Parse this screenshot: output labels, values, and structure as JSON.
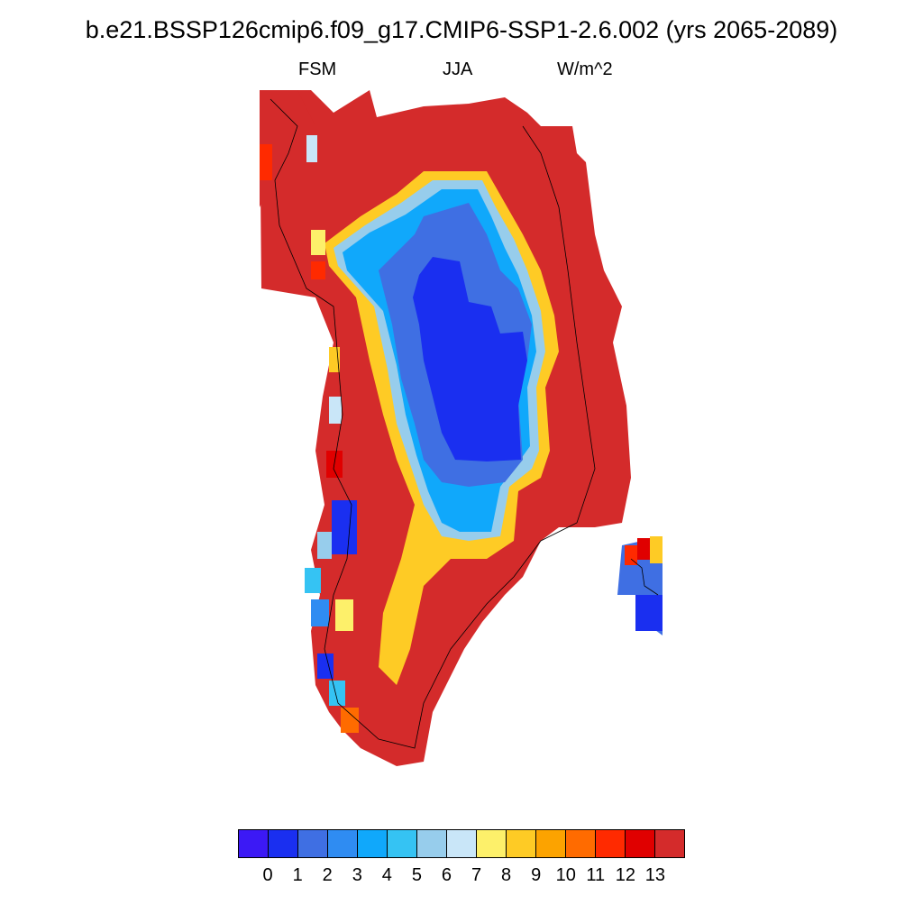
{
  "title": "b.e21.BSSP126cmip6.f09_g17.CMIP6-SSP1-2.6.002 (yrs 2065-2089)",
  "subtitle": {
    "left": "FSM",
    "center": "JJA",
    "right": "W/m^2"
  },
  "colorbar": {
    "colors": [
      "#3c19f5",
      "#1a2ff0",
      "#3f6fe3",
      "#2f8cf2",
      "#10a8fb",
      "#35c3f3",
      "#97cdec",
      "#c9e6f8",
      "#fdf06a",
      "#fecb25",
      "#fca300",
      "#ff6b00",
      "#ff2a00",
      "#e00000",
      "#d42b2b"
    ],
    "labels": [
      "0",
      "1",
      "2",
      "3",
      "4",
      "5",
      "6",
      "7",
      "8",
      "9",
      "10",
      "11",
      "12",
      "13"
    ]
  },
  "map_data": {
    "variable": "FSM",
    "season": "JJA",
    "units": "W/m^2",
    "description_levels": "Greenland: interior near 0-2, ice-sheet margin gradient through 3-10, coastal periphery above 13"
  }
}
